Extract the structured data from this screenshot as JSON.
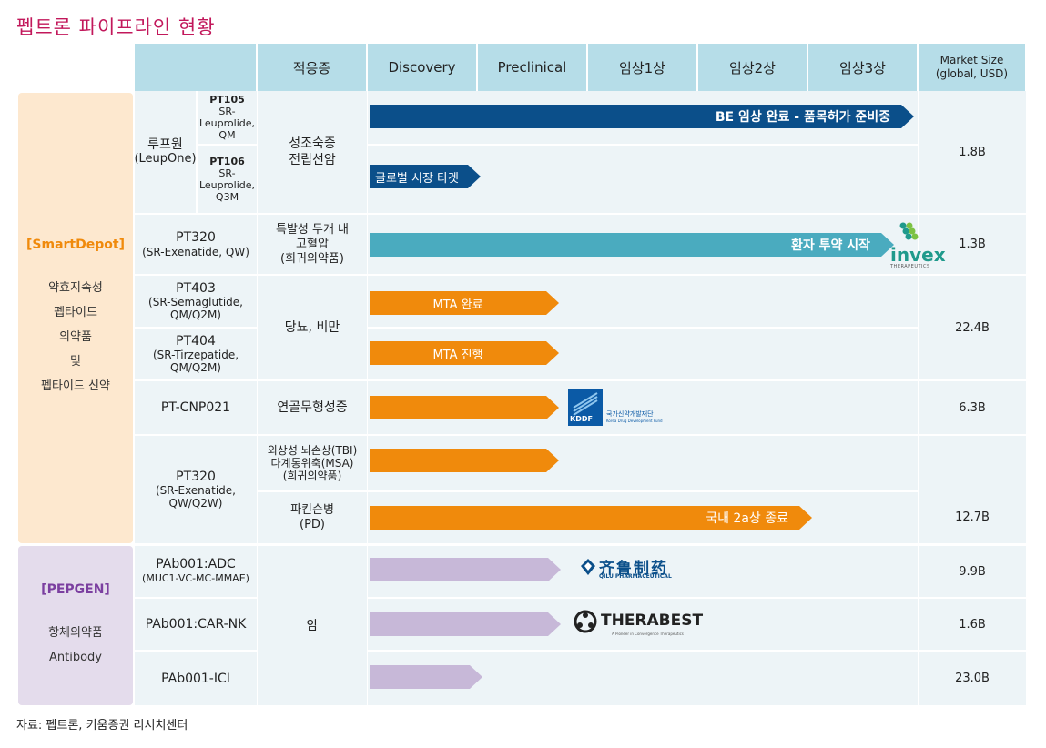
{
  "title": "펩트론 파이프라인 현황",
  "footer": "자료: 펩트론, 키움증권 리서치센터",
  "header": {
    "indication": "적응증",
    "discovery": "Discovery",
    "preclinical": "Preclinical",
    "phase1": "임상1상",
    "phase2": "임상2상",
    "phase3": "임상3상",
    "market_size_line1": "Market Size",
    "market_size_line2": "(global, USD)"
  },
  "platforms": {
    "smartdepot": {
      "tag": "[SmartDepot]",
      "desc1": "약효지속성",
      "desc2": "펩타이드",
      "desc3": "의약품",
      "desc4": "및",
      "desc5": "펩타이드 신약"
    },
    "pepgen": {
      "tag": "[PEPGEN]",
      "desc1": "항체의약품",
      "desc2": "Antibody"
    }
  },
  "rows": {
    "leupone": {
      "name": "루프원",
      "name_en": "(LeupOne)",
      "pt105": {
        "code": "PT105",
        "l1": "SR-",
        "l2": "Leuprolide,",
        "l3": "QM"
      },
      "pt106": {
        "code": "PT106",
        "l1": "SR-",
        "l2": "Leuprolide,",
        "l3": "Q3M"
      },
      "indication1": "성조숙증",
      "indication2": "전립선암",
      "bar1": "BE 임상 완료 -  품목허가 준비중",
      "bar2": "글로벌 시장 타겟",
      "market": "1.8B"
    },
    "pt320a": {
      "code": "PT320",
      "desc": "(SR-Exenatide, QW)",
      "indication1": "특발성 두개 내",
      "indication2": "고혈압",
      "indication3": "(희귀의약품)",
      "bar": "환자 투약 시작",
      "partner": "invex",
      "partner_sub": "THERAPEUTICS",
      "market": "1.3B"
    },
    "pt403": {
      "code": "PT403",
      "desc1": "(SR-Semaglutide,",
      "desc2": "QM/Q2M)",
      "bar": "MTA 완료"
    },
    "pt404": {
      "code": "PT404",
      "desc1": "(SR-Tirzepatide,",
      "desc2": "QM/Q2M)",
      "bar": "MTA 진행"
    },
    "obesity": {
      "indication": "당뇨, 비만",
      "market": "22.4B"
    },
    "cnp": {
      "code": "PT-CNP021",
      "indication": "연골무형성증",
      "partner": "KDDF",
      "partner_sub": "국가신약개발재단",
      "partner_sub2": "Korea Drug Development Fund",
      "market": "6.3B"
    },
    "pt320b": {
      "code": "PT320",
      "desc1": "(SR-Exenatide,",
      "desc2": "QW/Q2W)",
      "indication_tbi1": "외상성 뇌손상(TBI)",
      "indication_tbi2": "다계통위축(MSA)",
      "indication_tbi3": "(희귀의약품)",
      "indication_pd1": "파킨슨병",
      "indication_pd2": "(PD)",
      "bar_pd": "국내 2a상 종료",
      "market": "12.7B"
    },
    "adc": {
      "code": "PAb001:ADC",
      "desc": "(MUC1-VC-MC-MMAE)",
      "partner": "齐鲁制药",
      "partner_sub": "QILU PHARMACEUTICAL",
      "market": "9.9B"
    },
    "carnk": {
      "code": "PAb001:CAR-NK",
      "partner": "THERABEST",
      "partner_sub": "A Pioneer in Convergence Therapeutics",
      "market": "1.6B"
    },
    "ici": {
      "code": "PAb001-ICI",
      "market": "23.0B"
    },
    "antibody_indication": "암"
  },
  "colors": {
    "navy": "#0b4f8a",
    "teal": "#4aabbf",
    "orange": "#f08a0c",
    "purple": "#c7b8d8",
    "header": "#b6dde8",
    "title": "#c2185b"
  }
}
